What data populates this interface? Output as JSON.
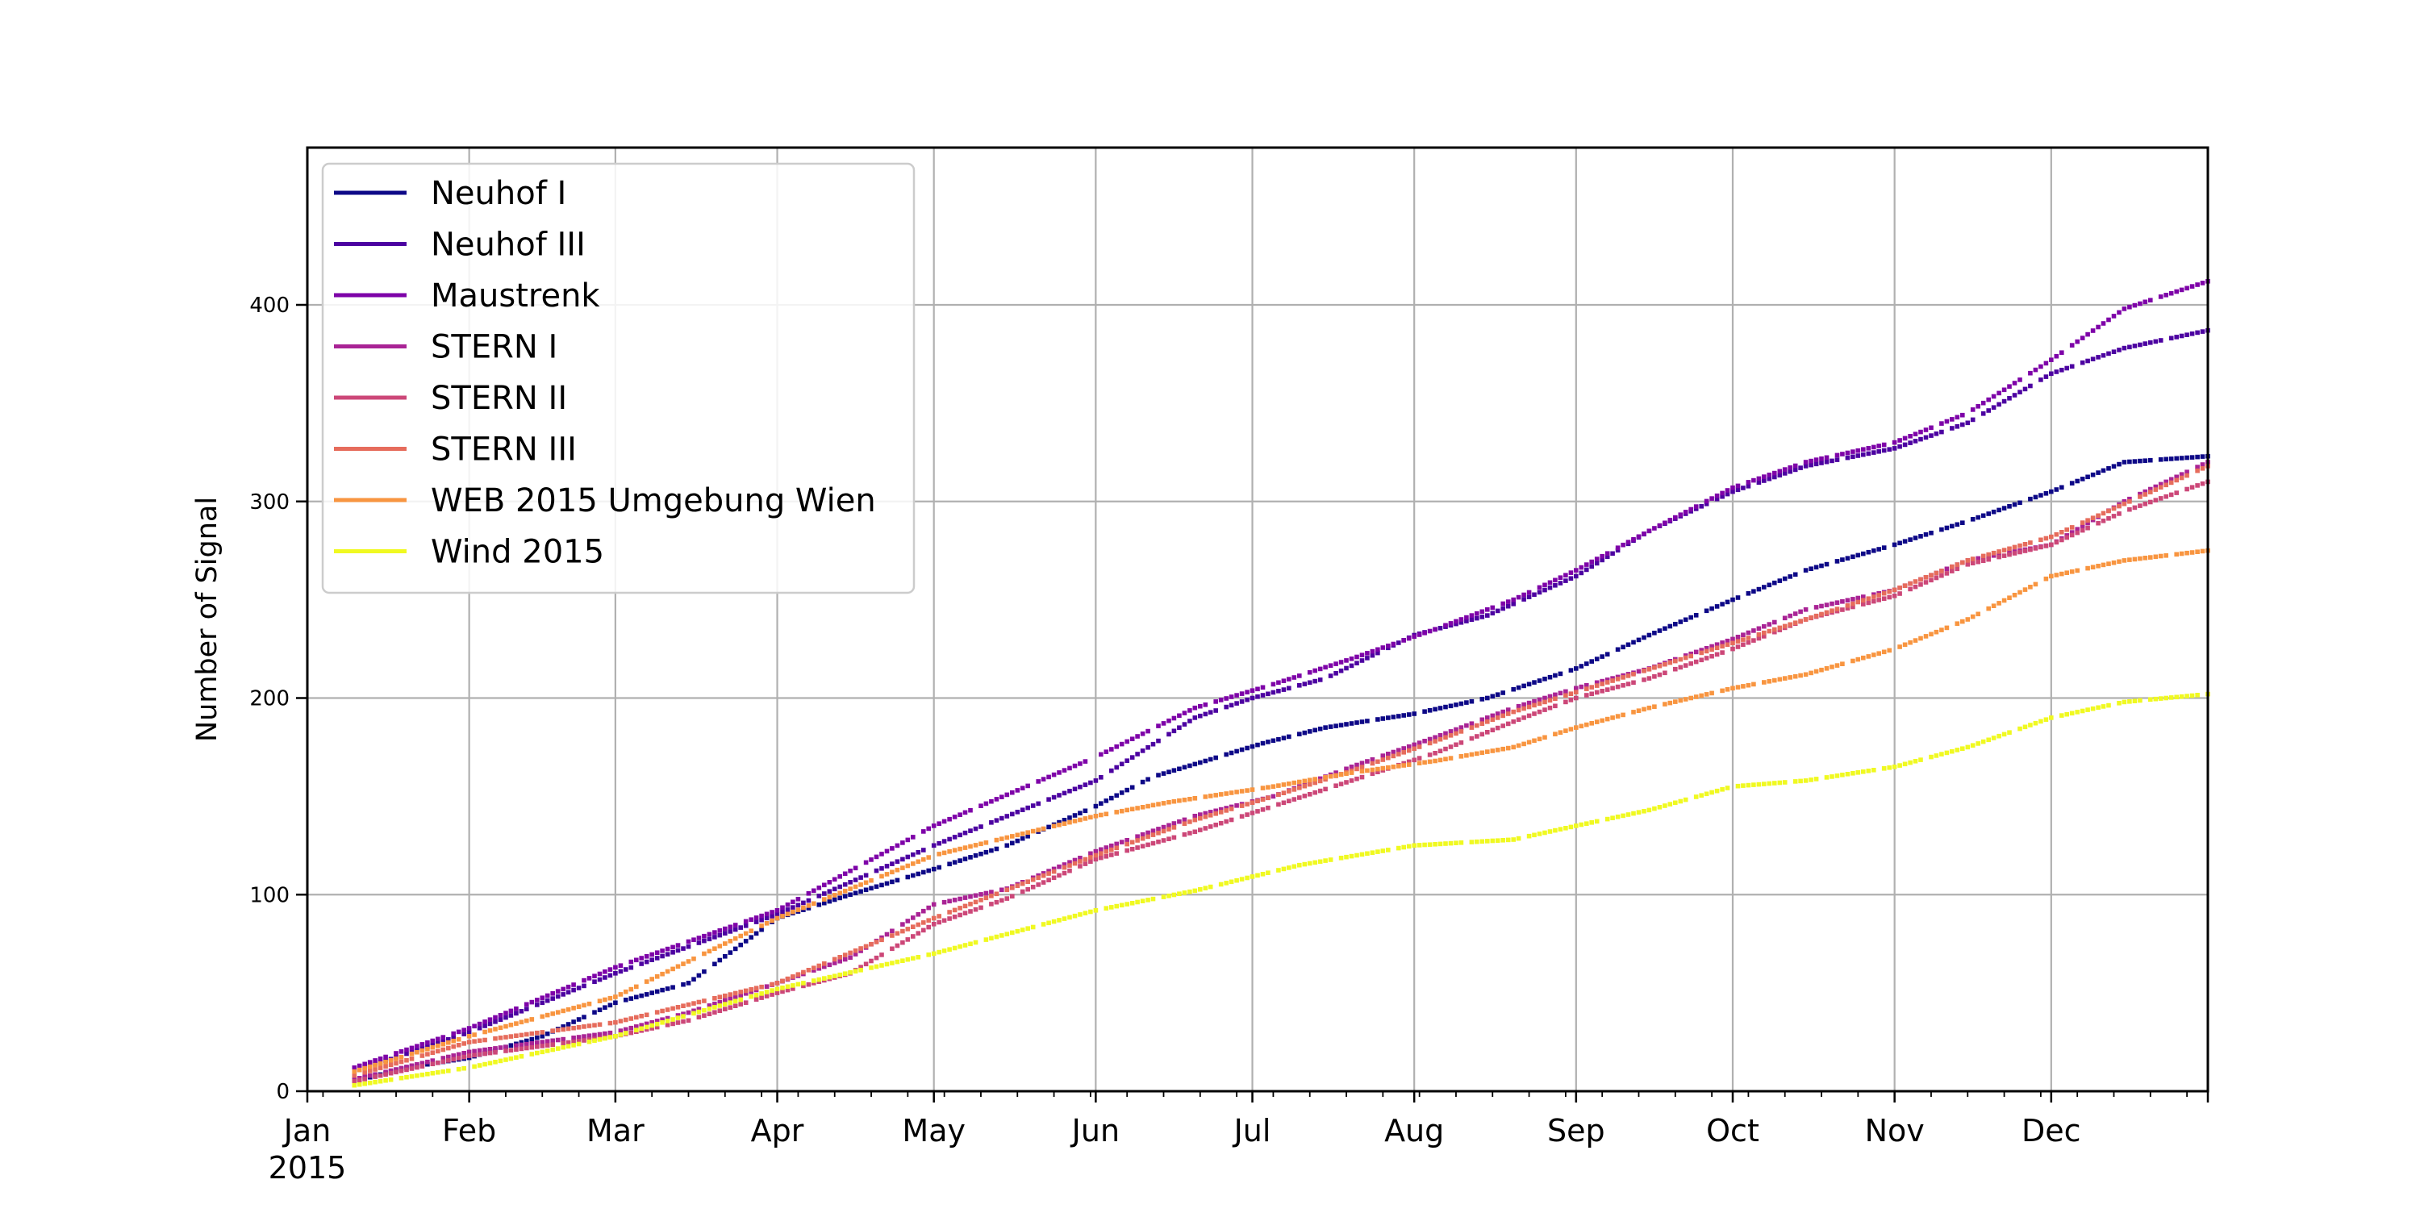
{
  "chart_data": {
    "type": "scatter",
    "title": "",
    "xlabel": "",
    "ylabel": "Number of Signal",
    "x_axis": {
      "start": "2015-01-01",
      "end": "2015-12-31",
      "tick_labels": [
        "Jan",
        "Feb",
        "Mar",
        "Apr",
        "May",
        "Jun",
        "Jul",
        "Aug",
        "Sep",
        "Oct",
        "Nov",
        "Dec"
      ],
      "year_label": "2015"
    },
    "ylim": [
      0,
      480
    ],
    "yticks": [
      0,
      100,
      200,
      300,
      400
    ],
    "grid": true,
    "legend_position": "top-left",
    "series": [
      {
        "name": "Neuhof I",
        "color": "#0d0887",
        "points": [
          [
            "2015-01-10",
            5
          ],
          [
            "2015-01-20",
            12
          ],
          [
            "2015-02-01",
            17
          ],
          [
            "2015-02-15",
            28
          ],
          [
            "2015-03-01",
            45
          ],
          [
            "2015-03-15",
            55
          ],
          [
            "2015-04-01",
            88
          ],
          [
            "2015-04-15",
            100
          ],
          [
            "2015-05-01",
            113
          ],
          [
            "2015-05-15",
            125
          ],
          [
            "2015-06-01",
            145
          ],
          [
            "2015-06-12",
            160
          ],
          [
            "2015-06-22",
            168
          ],
          [
            "2015-07-03",
            177
          ],
          [
            "2015-07-15",
            185
          ],
          [
            "2015-08-01",
            192
          ],
          [
            "2015-08-15",
            200
          ],
          [
            "2015-09-01",
            215
          ],
          [
            "2015-09-15",
            232
          ],
          [
            "2015-10-01",
            250
          ],
          [
            "2015-10-15",
            265
          ],
          [
            "2015-11-01",
            278
          ],
          [
            "2015-11-15",
            290
          ],
          [
            "2015-12-01",
            305
          ],
          [
            "2015-12-15",
            320
          ],
          [
            "2015-12-31",
            323
          ]
        ]
      },
      {
        "name": "Neuhof III",
        "color": "#4c02a1",
        "points": [
          [
            "2015-01-10",
            10
          ],
          [
            "2015-02-01",
            30
          ],
          [
            "2015-03-01",
            60
          ],
          [
            "2015-04-01",
            90
          ],
          [
            "2015-05-01",
            125
          ],
          [
            "2015-06-01",
            158
          ],
          [
            "2015-06-20",
            190
          ],
          [
            "2015-07-01",
            200
          ],
          [
            "2015-07-15",
            210
          ],
          [
            "2015-08-01",
            232
          ],
          [
            "2015-08-15",
            242
          ],
          [
            "2015-09-01",
            262
          ],
          [
            "2015-09-15",
            285
          ],
          [
            "2015-10-01",
            305
          ],
          [
            "2015-10-15",
            318
          ],
          [
            "2015-11-01",
            327
          ],
          [
            "2015-11-15",
            340
          ],
          [
            "2015-12-01",
            365
          ],
          [
            "2015-12-15",
            378
          ],
          [
            "2015-12-31",
            387
          ]
        ]
      },
      {
        "name": "Maustrenk",
        "color": "#7e03a8",
        "points": [
          [
            "2015-01-10",
            12
          ],
          [
            "2015-02-01",
            32
          ],
          [
            "2015-03-01",
            63
          ],
          [
            "2015-04-01",
            92
          ],
          [
            "2015-05-01",
            135
          ],
          [
            "2015-06-01",
            170
          ],
          [
            "2015-06-20",
            195
          ],
          [
            "2015-07-05",
            207
          ],
          [
            "2015-07-20",
            220
          ],
          [
            "2015-08-05",
            235
          ],
          [
            "2015-08-20",
            250
          ],
          [
            "2015-09-01",
            265
          ],
          [
            "2015-09-15",
            285
          ],
          [
            "2015-10-01",
            307
          ],
          [
            "2015-10-15",
            320
          ],
          [
            "2015-11-01",
            330
          ],
          [
            "2015-11-15",
            345
          ],
          [
            "2015-12-01",
            372
          ],
          [
            "2015-12-15",
            398
          ],
          [
            "2015-12-31",
            412
          ]
        ]
      },
      {
        "name": "STERN I",
        "color": "#a92395",
        "points": [
          [
            "2015-01-10",
            6
          ],
          [
            "2015-02-01",
            20
          ],
          [
            "2015-03-01",
            30
          ],
          [
            "2015-03-15",
            40
          ],
          [
            "2015-04-01",
            55
          ],
          [
            "2015-04-15",
            68
          ],
          [
            "2015-05-01",
            95
          ],
          [
            "2015-05-15",
            103
          ],
          [
            "2015-06-01",
            122
          ],
          [
            "2015-06-20",
            140
          ],
          [
            "2015-07-05",
            150
          ],
          [
            "2015-07-20",
            165
          ],
          [
            "2015-08-05",
            180
          ],
          [
            "2015-08-20",
            195
          ],
          [
            "2015-09-01",
            205
          ],
          [
            "2015-09-15",
            215
          ],
          [
            "2015-10-01",
            230
          ],
          [
            "2015-10-15",
            245
          ],
          [
            "2015-11-01",
            255
          ],
          [
            "2015-11-15",
            270
          ],
          [
            "2015-12-01",
            278
          ],
          [
            "2015-12-15",
            300
          ],
          [
            "2015-12-31",
            320
          ]
        ]
      },
      {
        "name": "STERN II",
        "color": "#cc4778",
        "points": [
          [
            "2015-01-10",
            5
          ],
          [
            "2015-02-01",
            18
          ],
          [
            "2015-03-01",
            28
          ],
          [
            "2015-03-15",
            36
          ],
          [
            "2015-04-01",
            50
          ],
          [
            "2015-04-15",
            60
          ],
          [
            "2015-05-01",
            85
          ],
          [
            "2015-05-15",
            98
          ],
          [
            "2015-06-01",
            118
          ],
          [
            "2015-06-20",
            132
          ],
          [
            "2015-07-05",
            145
          ],
          [
            "2015-07-20",
            158
          ],
          [
            "2015-08-05",
            172
          ],
          [
            "2015-08-20",
            188
          ],
          [
            "2015-09-01",
            200
          ],
          [
            "2015-09-15",
            210
          ],
          [
            "2015-10-01",
            225
          ],
          [
            "2015-10-15",
            240
          ],
          [
            "2015-11-01",
            252
          ],
          [
            "2015-11-15",
            268
          ],
          [
            "2015-12-01",
            278
          ],
          [
            "2015-12-15",
            295
          ],
          [
            "2015-12-31",
            310
          ]
        ]
      },
      {
        "name": "STERN III",
        "color": "#e66c5c",
        "points": [
          [
            "2015-01-10",
            8
          ],
          [
            "2015-02-01",
            25
          ],
          [
            "2015-03-01",
            35
          ],
          [
            "2015-04-01",
            55
          ],
          [
            "2015-05-01",
            88
          ],
          [
            "2015-06-01",
            120
          ],
          [
            "2015-06-20",
            138
          ],
          [
            "2015-07-05",
            150
          ],
          [
            "2015-07-20",
            163
          ],
          [
            "2015-08-05",
            178
          ],
          [
            "2015-08-20",
            193
          ],
          [
            "2015-09-01",
            203
          ],
          [
            "2015-10-01",
            228
          ],
          [
            "2015-10-15",
            240
          ],
          [
            "2015-11-01",
            255
          ],
          [
            "2015-11-15",
            270
          ],
          [
            "2015-12-01",
            282
          ],
          [
            "2015-12-31",
            318
          ]
        ]
      },
      {
        "name": "WEB 2015 Umgebung Wien",
        "color": "#f89540",
        "points": [
          [
            "2015-01-10",
            10
          ],
          [
            "2015-02-01",
            28
          ],
          [
            "2015-03-01",
            48
          ],
          [
            "2015-04-01",
            88
          ],
          [
            "2015-05-01",
            120
          ],
          [
            "2015-06-01",
            140
          ],
          [
            "2015-06-15",
            147
          ],
          [
            "2015-07-05",
            155
          ],
          [
            "2015-07-20",
            162
          ],
          [
            "2015-08-05",
            168
          ],
          [
            "2015-08-20",
            175
          ],
          [
            "2015-09-01",
            185
          ],
          [
            "2015-09-15",
            195
          ],
          [
            "2015-10-01",
            205
          ],
          [
            "2015-10-15",
            212
          ],
          [
            "2015-11-01",
            225
          ],
          [
            "2015-11-15",
            240
          ],
          [
            "2015-12-01",
            262
          ],
          [
            "2015-12-15",
            270
          ],
          [
            "2015-12-31",
            275
          ]
        ]
      },
      {
        "name": "Wind 2015",
        "color": "#f0f921",
        "points": [
          [
            "2015-01-10",
            3
          ],
          [
            "2015-02-01",
            12
          ],
          [
            "2015-03-01",
            28
          ],
          [
            "2015-04-01",
            52
          ],
          [
            "2015-05-01",
            70
          ],
          [
            "2015-06-01",
            92
          ],
          [
            "2015-06-20",
            102
          ],
          [
            "2015-07-10",
            115
          ],
          [
            "2015-08-01",
            125
          ],
          [
            "2015-08-20",
            128
          ],
          [
            "2015-09-01",
            135
          ],
          [
            "2015-09-15",
            143
          ],
          [
            "2015-10-01",
            155
          ],
          [
            "2015-10-15",
            158
          ],
          [
            "2015-11-01",
            165
          ],
          [
            "2015-11-15",
            175
          ],
          [
            "2015-12-01",
            190
          ],
          [
            "2015-12-15",
            198
          ],
          [
            "2015-12-31",
            202
          ]
        ]
      }
    ]
  }
}
